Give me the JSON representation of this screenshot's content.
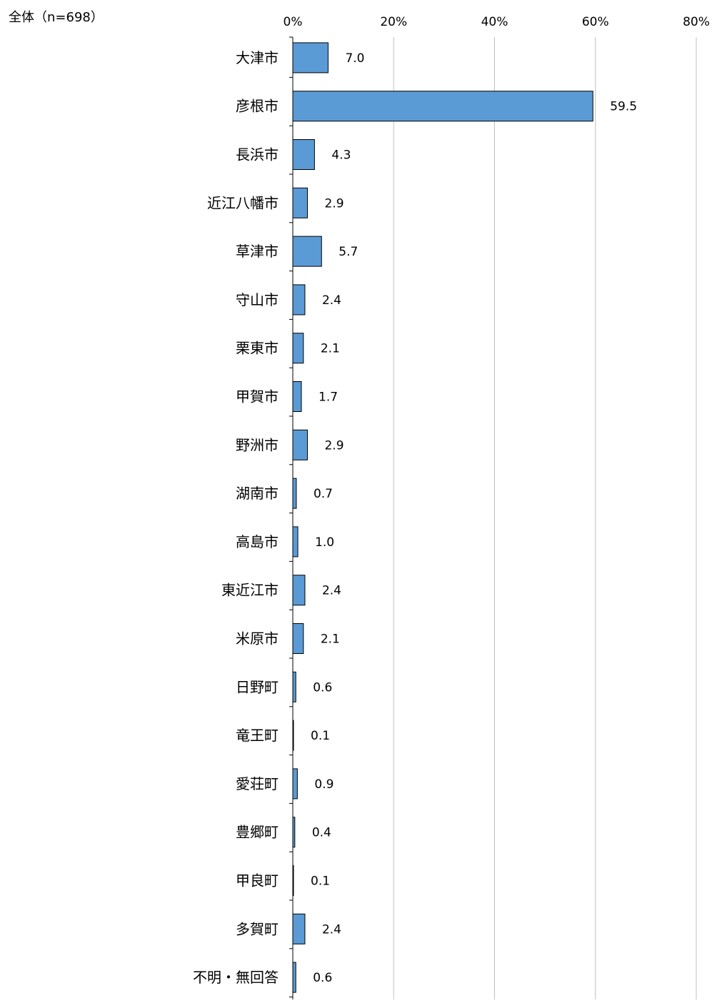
{
  "chart_data": {
    "type": "bar",
    "orientation": "horizontal",
    "subtitle": "全体（n=698）",
    "categories": [
      "大津市",
      "彦根市",
      "長浜市",
      "近江八幡市",
      "草津市",
      "守山市",
      "栗東市",
      "甲賀市",
      "野洲市",
      "湖南市",
      "高島市",
      "東近江市",
      "米原市",
      "日野町",
      "竜王町",
      "愛荘町",
      "豊郷町",
      "甲良町",
      "多賀町",
      "不明・無回答"
    ],
    "values": [
      7.0,
      59.5,
      4.3,
      2.9,
      5.7,
      2.4,
      2.1,
      1.7,
      2.9,
      0.7,
      1.0,
      2.4,
      2.1,
      0.6,
      0.1,
      0.9,
      0.4,
      0.1,
      2.4,
      0.6
    ],
    "value_labels": [
      "7.0",
      "59.5",
      "4.3",
      "2.9",
      "5.7",
      "2.4",
      "2.1",
      "1.7",
      "2.9",
      "0.7",
      "1.0",
      "2.4",
      "2.1",
      "0.6",
      "0.1",
      "0.9",
      "0.4",
      "0.1",
      "2.4",
      "0.6"
    ],
    "xlim": [
      0,
      80
    ],
    "xticks": [
      0,
      20,
      40,
      60,
      80
    ],
    "xtick_labels": [
      "0%",
      "20%",
      "40%",
      "60%",
      "80%"
    ],
    "x_axis_position": "top",
    "grid": true,
    "legend": "none",
    "bar_color": "#5B9BD5",
    "bar_border_color": "#000000",
    "grid_color": "#BFBFBF"
  }
}
